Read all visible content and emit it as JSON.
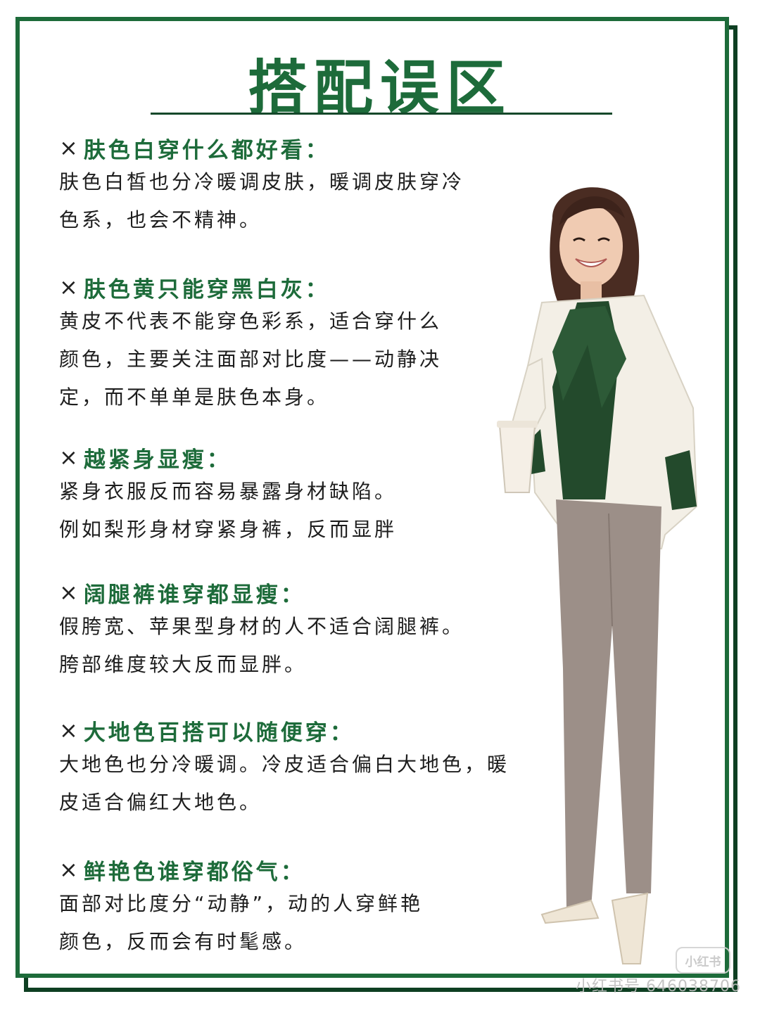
{
  "title": "搭配误区",
  "items": [
    {
      "mark": "×",
      "heading": "肤色白穿什么都好看：",
      "lines": [
        "肤色白皙也分冷暖调皮肤，暖调皮肤穿冷",
        "色系，也会不精神。"
      ]
    },
    {
      "mark": "×",
      "heading": "肤色黄只能穿黑白灰：",
      "lines": [
        "黄皮不代表不能穿色彩系，适合穿什么",
        "颜色，主要关注面部对比度——动静决",
        "定，而不单单是肤色本身。"
      ]
    },
    {
      "mark": "×",
      "heading": "越紧身显瘦：",
      "lines": [
        "紧身衣服反而容易暴露身材缺陷。",
        "例如梨形身材穿紧身裤，反而显胖"
      ]
    },
    {
      "mark": "×",
      "heading": "阔腿裤谁穿都显瘦：",
      "lines": [
        "假胯宽、苹果型身材的人不适合阔腿裤。",
        "胯部维度较大反而显胖。"
      ]
    },
    {
      "mark": "×",
      "heading": "大地色百搭可以随便穿：",
      "lines": [
        "大地色也分冷暖调。冷皮适合偏白大地色，暖",
        "皮适合偏红大地色。"
      ]
    },
    {
      "mark": "×",
      "heading": "鲜艳色谁穿都俗气：",
      "lines": [
        "面部对比度分“动静”，动的人穿鲜艳",
        "颜色，反而会有时髦感。"
      ]
    }
  ],
  "watermark": {
    "logo": "小红书",
    "text": "小红书号 646038706"
  },
  "colors": {
    "brand_green": "#1d6b3a",
    "dark_green": "#0e3f22",
    "blazer": "#f3efe6",
    "blouse": "#234a2c",
    "trousers": "#9c8f88"
  }
}
